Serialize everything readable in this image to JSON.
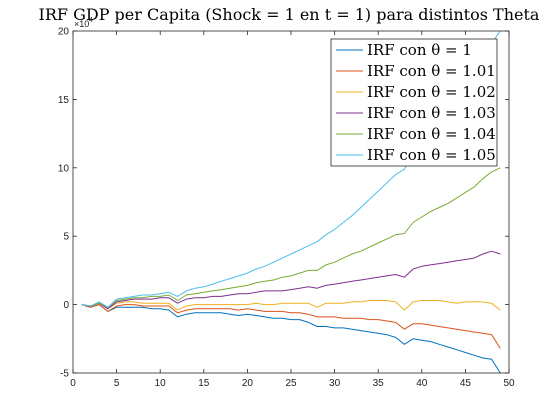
{
  "chart_data": {
    "type": "line",
    "title": "IRF GDP per Capita (Shock = 1 en t = 1) para distintos Theta",
    "xlabel": "",
    "ylabel": "",
    "xlim": [
      0,
      50
    ],
    "ylim": [
      -5,
      20
    ],
    "y_multiplier": "×10",
    "y_exponent": "4",
    "xticks": [
      "0",
      "5",
      "10",
      "15",
      "20",
      "25",
      "30",
      "35",
      "40",
      "45",
      "50"
    ],
    "yticks": [
      "-5",
      "0",
      "5",
      "10",
      "15",
      "20"
    ],
    "grid": false,
    "legend_position": "top-right",
    "x": [
      1,
      2,
      3,
      4,
      5,
      6,
      7,
      8,
      9,
      10,
      11,
      12,
      13,
      14,
      15,
      16,
      17,
      18,
      19,
      20,
      21,
      22,
      23,
      24,
      25,
      26,
      27,
      28,
      29,
      30,
      31,
      32,
      33,
      34,
      35,
      36,
      37,
      38,
      39,
      40,
      41,
      42,
      43,
      44,
      45,
      46,
      47,
      48,
      49
    ],
    "series": [
      {
        "name": "IRF con θ = 1",
        "color": "#0072BD",
        "values": [
          0,
          -0.2,
          0,
          -0.5,
          -0.2,
          -0.2,
          -0.2,
          -0.2,
          -0.3,
          -0.3,
          -0.4,
          -0.9,
          -0.7,
          -0.6,
          -0.6,
          -0.6,
          -0.6,
          -0.7,
          -0.8,
          -0.7,
          -0.8,
          -0.9,
          -1.0,
          -1.0,
          -1.1,
          -1.1,
          -1.3,
          -1.6,
          -1.6,
          -1.7,
          -1.7,
          -1.8,
          -1.9,
          -2.0,
          -2.1,
          -2.2,
          -2.4,
          -2.9,
          -2.5,
          -2.6,
          -2.7,
          -2.9,
          -3.1,
          -3.3,
          -3.5,
          -3.7,
          -3.9,
          -4.0,
          -5.0
        ]
      },
      {
        "name": "IRF con θ = 1.01",
        "color": "#D95319",
        "values": [
          0,
          -0.2,
          0,
          -0.5,
          -0.1,
          0,
          0,
          -0.1,
          -0.1,
          -0.1,
          -0.1,
          -0.6,
          -0.4,
          -0.3,
          -0.3,
          -0.3,
          -0.3,
          -0.3,
          -0.4,
          -0.3,
          -0.4,
          -0.5,
          -0.5,
          -0.5,
          -0.6,
          -0.6,
          -0.7,
          -0.9,
          -0.9,
          -0.9,
          -1.0,
          -1.0,
          -1.0,
          -1.1,
          -1.1,
          -1.2,
          -1.3,
          -1.8,
          -1.4,
          -1.4,
          -1.5,
          -1.6,
          -1.7,
          -1.8,
          -1.9,
          -2.0,
          -2.1,
          -2.2,
          -3.2
        ]
      },
      {
        "name": "IRF con θ = 1.02",
        "color": "#EDB120",
        "values": [
          0,
          -0.1,
          0.1,
          -0.3,
          0.1,
          0.2,
          0.2,
          0.1,
          0.1,
          0.1,
          0.1,
          -0.4,
          -0.1,
          0,
          0,
          0,
          0,
          0,
          0,
          0,
          0.1,
          0,
          0,
          0.1,
          0.1,
          0.1,
          0.1,
          -0.2,
          0.1,
          0.1,
          0.1,
          0.2,
          0.2,
          0.3,
          0.3,
          0.3,
          0.2,
          -0.4,
          0.2,
          0.3,
          0.3,
          0.3,
          0.2,
          0.1,
          0.2,
          0.2,
          0.2,
          0.1,
          -0.4
        ]
      },
      {
        "name": "IRF con θ = 1.03",
        "color": "#7E2F8E",
        "values": [
          0,
          -0.1,
          0.1,
          -0.3,
          0.2,
          0.3,
          0.4,
          0.4,
          0.4,
          0.5,
          0.5,
          0.1,
          0.4,
          0.5,
          0.5,
          0.6,
          0.6,
          0.7,
          0.8,
          0.8,
          0.9,
          1.0,
          1.0,
          1.0,
          1.1,
          1.2,
          1.3,
          1.2,
          1.4,
          1.5,
          1.6,
          1.7,
          1.8,
          1.9,
          2.0,
          2.1,
          2.2,
          2.0,
          2.6,
          2.8,
          2.9,
          3.0,
          3.1,
          3.2,
          3.3,
          3.4,
          3.7,
          3.9,
          3.7
        ]
      },
      {
        "name": "IRF con θ = 1.04",
        "color": "#77AC30",
        "values": [
          0,
          -0.1,
          0.1,
          -0.2,
          0.3,
          0.4,
          0.5,
          0.5,
          0.6,
          0.6,
          0.7,
          0.3,
          0.7,
          0.8,
          0.9,
          1.0,
          1.1,
          1.2,
          1.3,
          1.4,
          1.6,
          1.7,
          1.8,
          2.0,
          2.1,
          2.3,
          2.5,
          2.5,
          2.9,
          3.1,
          3.4,
          3.7,
          3.9,
          4.2,
          4.5,
          4.8,
          5.1,
          5.2,
          6.0,
          6.4,
          6.8,
          7.1,
          7.4,
          7.8,
          8.2,
          8.6,
          9.2,
          9.7,
          10.0
        ]
      },
      {
        "name": "IRF con θ = 1.05",
        "color": "#4DBEEE",
        "values": [
          0,
          -0.1,
          0.2,
          -0.2,
          0.4,
          0.5,
          0.6,
          0.7,
          0.7,
          0.8,
          0.9,
          0.6,
          1.0,
          1.2,
          1.3,
          1.5,
          1.7,
          1.9,
          2.1,
          2.3,
          2.6,
          2.8,
          3.1,
          3.4,
          3.7,
          4.0,
          4.3,
          4.6,
          5.1,
          5.5,
          6.0,
          6.5,
          7.1,
          7.7,
          8.3,
          8.9,
          9.5,
          9.9,
          11.0,
          11.8,
          12.6,
          13.4,
          14.3,
          15.2,
          16.1,
          17.0,
          18.0,
          19.1,
          20.0
        ]
      }
    ]
  }
}
